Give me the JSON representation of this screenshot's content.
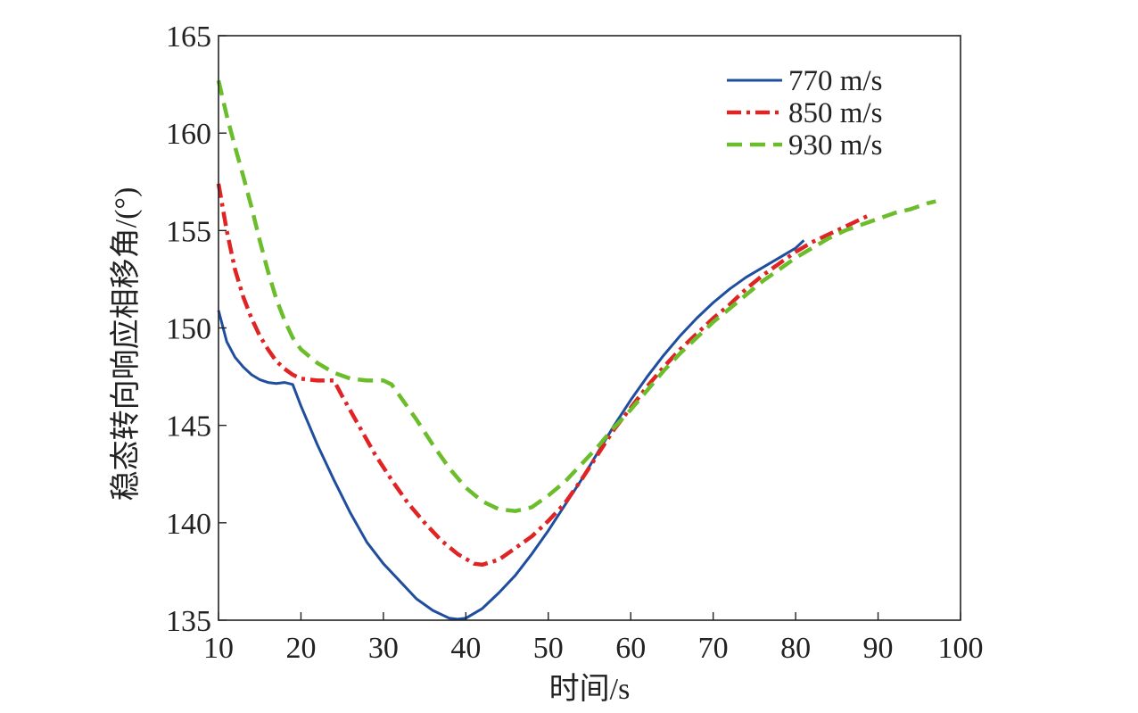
{
  "chart_data": {
    "type": "line",
    "title": "",
    "xlabel": "时间/s",
    "ylabel": "稳态转向响应相移角/(°)",
    "xlim": [
      10,
      100
    ],
    "ylim": [
      135,
      165
    ],
    "xticks": [
      10,
      20,
      30,
      40,
      50,
      60,
      70,
      80,
      90,
      100
    ],
    "yticks": [
      135,
      140,
      145,
      150,
      155,
      160,
      165
    ],
    "grid": false,
    "legend_position": "top-right",
    "series": [
      {
        "name": "770 m/s",
        "color": "#1f4e9e",
        "style": "solid",
        "points": [
          [
            10,
            150.9
          ],
          [
            11,
            149.3
          ],
          [
            12,
            148.5
          ],
          [
            13,
            148.0
          ],
          [
            14,
            147.6
          ],
          [
            15,
            147.35
          ],
          [
            16,
            147.2
          ],
          [
            17,
            147.15
          ],
          [
            18,
            147.2
          ],
          [
            19,
            147.1
          ],
          [
            20,
            146.0
          ],
          [
            22,
            144.0
          ],
          [
            24,
            142.2
          ],
          [
            26,
            140.5
          ],
          [
            28,
            139.0
          ],
          [
            30,
            137.9
          ],
          [
            32,
            137.0
          ],
          [
            34,
            136.1
          ],
          [
            36,
            135.5
          ],
          [
            38,
            135.1
          ],
          [
            39,
            135.05
          ],
          [
            40,
            135.1
          ],
          [
            42,
            135.6
          ],
          [
            44,
            136.4
          ],
          [
            46,
            137.3
          ],
          [
            48,
            138.4
          ],
          [
            50,
            139.6
          ],
          [
            52,
            140.9
          ],
          [
            54,
            142.2
          ],
          [
            56,
            143.6
          ],
          [
            58,
            145.0
          ],
          [
            60,
            146.3
          ],
          [
            62,
            147.5
          ],
          [
            64,
            148.6
          ],
          [
            66,
            149.6
          ],
          [
            68,
            150.5
          ],
          [
            70,
            151.3
          ],
          [
            72,
            152.0
          ],
          [
            74,
            152.6
          ],
          [
            76,
            153.1
          ],
          [
            78,
            153.6
          ],
          [
            80,
            154.1
          ],
          [
            81,
            154.5
          ]
        ]
      },
      {
        "name": "850 m/s",
        "color": "#e02424",
        "style": "dashdot",
        "points": [
          [
            10,
            157.4
          ],
          [
            11,
            155.0
          ],
          [
            12,
            153.0
          ],
          [
            13,
            151.6
          ],
          [
            14,
            150.5
          ],
          [
            15,
            149.6
          ],
          [
            16,
            148.9
          ],
          [
            17,
            148.3
          ],
          [
            18,
            147.9
          ],
          [
            19,
            147.6
          ],
          [
            20,
            147.4
          ],
          [
            21,
            147.35
          ],
          [
            22,
            147.3
          ],
          [
            23,
            147.3
          ],
          [
            24,
            147.3
          ],
          [
            25,
            146.5
          ],
          [
            27,
            145.0
          ],
          [
            29,
            143.5
          ],
          [
            31,
            142.2
          ],
          [
            33,
            141.0
          ],
          [
            35,
            140.0
          ],
          [
            37,
            139.1
          ],
          [
            39,
            138.4
          ],
          [
            41,
            137.9
          ],
          [
            42,
            137.85
          ],
          [
            44,
            138.1
          ],
          [
            46,
            138.7
          ],
          [
            48,
            139.3
          ],
          [
            50,
            140.1
          ],
          [
            52,
            141.0
          ],
          [
            54,
            142.2
          ],
          [
            56,
            143.5
          ],
          [
            58,
            144.8
          ],
          [
            60,
            145.9
          ],
          [
            62,
            147.0
          ],
          [
            64,
            148.0
          ],
          [
            66,
            148.9
          ],
          [
            68,
            149.7
          ],
          [
            70,
            150.5
          ],
          [
            72,
            151.2
          ],
          [
            74,
            152.0
          ],
          [
            76,
            152.7
          ],
          [
            78,
            153.3
          ],
          [
            80,
            153.9
          ],
          [
            82,
            154.4
          ],
          [
            84,
            154.8
          ],
          [
            86,
            155.2
          ],
          [
            88,
            155.6
          ],
          [
            89,
            155.8
          ]
        ]
      },
      {
        "name": "930 m/s",
        "color": "#6cbd2c",
        "style": "dashed",
        "points": [
          [
            10,
            162.7
          ],
          [
            11,
            160.9
          ],
          [
            12,
            159.3
          ],
          [
            13,
            157.8
          ],
          [
            14,
            156.2
          ],
          [
            15,
            154.5
          ],
          [
            16,
            152.9
          ],
          [
            17,
            151.5
          ],
          [
            18,
            150.4
          ],
          [
            19,
            149.5
          ],
          [
            20,
            148.9
          ],
          [
            22,
            148.2
          ],
          [
            24,
            147.7
          ],
          [
            26,
            147.4
          ],
          [
            28,
            147.3
          ],
          [
            30,
            147.3
          ],
          [
            31,
            147.1
          ],
          [
            32,
            146.5
          ],
          [
            34,
            145.3
          ],
          [
            36,
            144.0
          ],
          [
            38,
            142.8
          ],
          [
            40,
            141.8
          ],
          [
            42,
            141.1
          ],
          [
            44,
            140.7
          ],
          [
            46,
            140.6
          ],
          [
            48,
            140.8
          ],
          [
            50,
            141.4
          ],
          [
            52,
            142.1
          ],
          [
            54,
            143.0
          ],
          [
            56,
            143.9
          ],
          [
            58,
            144.9
          ],
          [
            60,
            145.8
          ],
          [
            62,
            146.8
          ],
          [
            64,
            147.8
          ],
          [
            66,
            148.7
          ],
          [
            68,
            149.5
          ],
          [
            70,
            150.3
          ],
          [
            72,
            151.0
          ],
          [
            74,
            151.7
          ],
          [
            76,
            152.4
          ],
          [
            78,
            153.0
          ],
          [
            80,
            153.6
          ],
          [
            82,
            154.1
          ],
          [
            84,
            154.6
          ],
          [
            86,
            155.0
          ],
          [
            88,
            155.3
          ],
          [
            90,
            155.6
          ],
          [
            92,
            155.9
          ],
          [
            94,
            156.1
          ],
          [
            96,
            156.4
          ],
          [
            97,
            156.5
          ]
        ]
      }
    ]
  }
}
